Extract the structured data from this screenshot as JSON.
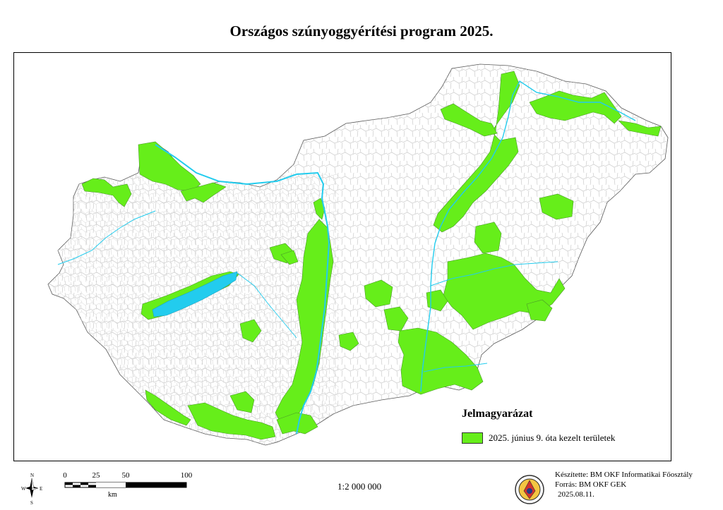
{
  "title": "Országos szúnyoggyérítési program 2025.",
  "colors": {
    "treated_area": "#66ee1a",
    "water": "#22ccee",
    "boundary": "#b8b8b8",
    "outline": "#555555"
  },
  "legend": {
    "title": "Jelmagyarázat",
    "items": [
      {
        "label": "2025. június 9. óta kezelt területek",
        "color": "#66ee1a"
      }
    ]
  },
  "north_arrow": {
    "n": "N",
    "s": "S",
    "e": "E",
    "w": "W"
  },
  "scale_bar": {
    "ticks": [
      "0",
      "25",
      "50",
      "100"
    ],
    "unit": "km"
  },
  "map_scale": "1:2 000 000",
  "credits": {
    "made_by": "Készítette: BM OKF Informatikai Főosztály",
    "source": "Forrás: BM OKF GEK",
    "date": "2025.08.11."
  }
}
